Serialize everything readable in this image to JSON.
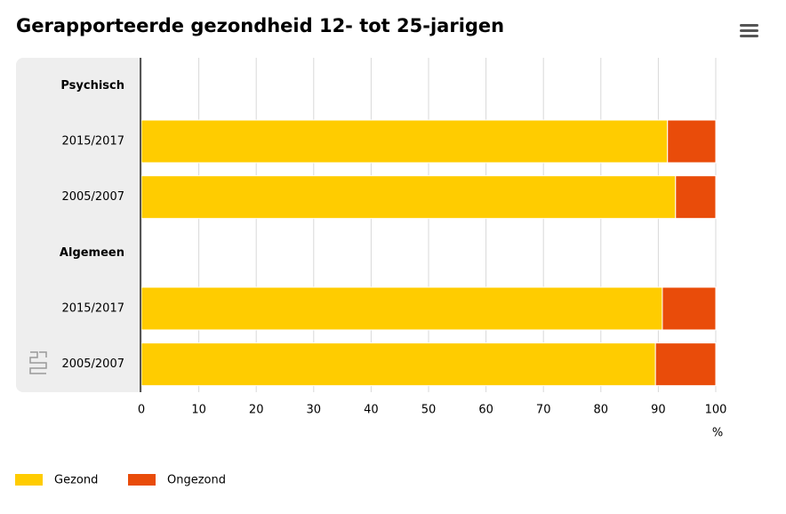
{
  "chart_data": {
    "type": "stacked-bar-horizontal",
    "title": "Gerapporteerde gezondheid 12- tot 25-jarigen",
    "categories": [
      "Psychisch",
      "2015/2017",
      "2005/2007",
      "Algemeen",
      "2015/2017",
      "2005/2007"
    ],
    "series": [
      {
        "name": "Gezond",
        "color": "#ffcc00",
        "values": [
          null,
          91.6,
          93.0,
          null,
          90.7,
          89.5
        ]
      },
      {
        "name": "Ongezond",
        "color": "#e94c0a",
        "values": [
          null,
          8.4,
          7.0,
          null,
          9.3,
          10.5
        ]
      }
    ],
    "xlim": [
      0,
      100
    ],
    "xticks": [
      0,
      10,
      20,
      30,
      40,
      50,
      60,
      70,
      80,
      90,
      100
    ],
    "x_label": "%",
    "grid": true,
    "legend": "bottom-left"
  }
}
